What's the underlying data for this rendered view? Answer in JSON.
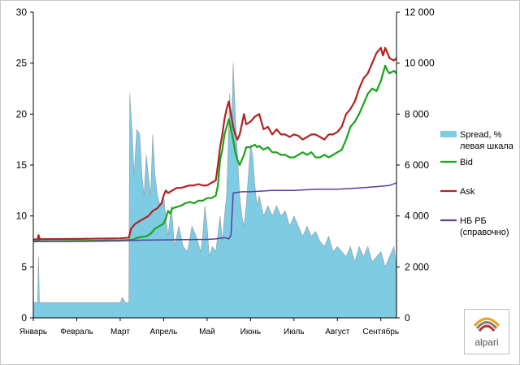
{
  "chart_data": {
    "type": "line",
    "title": "",
    "x_categories": [
      "Январь",
      "Февраль",
      "Март",
      "Апрель",
      "Май",
      "Июнь",
      "Июль",
      "Август",
      "Сентябрь"
    ],
    "y_left": {
      "min": 0,
      "max": 30,
      "ticks": [
        "0",
        "5",
        "10",
        "15",
        "20",
        "25",
        "30"
      ]
    },
    "y_right": {
      "min": 0,
      "max": 12000,
      "ticks": [
        "0",
        "2 000",
        "4 000",
        "6 000",
        "8 000",
        "10 000",
        "12 000"
      ]
    },
    "grid": false,
    "legend_position": "right",
    "series": [
      {
        "name": "Spread, %\nлевая шкала",
        "type": "area",
        "axis": "left",
        "color": "#7ecbe4",
        "points": [
          [
            0,
            1.5
          ],
          [
            0.1,
            1.5
          ],
          [
            0.12,
            6
          ],
          [
            0.14,
            1.5
          ],
          [
            1.0,
            1.5
          ],
          [
            2.0,
            1.5
          ],
          [
            2.05,
            2
          ],
          [
            2.12,
            1.5
          ],
          [
            2.2,
            1.5
          ],
          [
            2.22,
            22
          ],
          [
            2.28,
            18
          ],
          [
            2.32,
            14
          ],
          [
            2.38,
            18.5
          ],
          [
            2.45,
            18
          ],
          [
            2.5,
            14
          ],
          [
            2.55,
            12
          ],
          [
            2.6,
            16
          ],
          [
            2.65,
            14
          ],
          [
            2.7,
            12
          ],
          [
            2.75,
            18
          ],
          [
            2.8,
            14
          ],
          [
            2.86,
            12
          ],
          [
            2.92,
            11
          ],
          [
            3.0,
            12
          ],
          [
            3.05,
            10
          ],
          [
            3.1,
            8
          ],
          [
            3.18,
            11
          ],
          [
            3.25,
            7
          ],
          [
            3.35,
            9
          ],
          [
            3.45,
            7
          ],
          [
            3.55,
            6.5
          ],
          [
            3.65,
            9
          ],
          [
            3.75,
            8
          ],
          [
            3.85,
            6.5
          ],
          [
            3.9,
            8
          ],
          [
            3.95,
            11
          ],
          [
            4.0,
            9
          ],
          [
            4.05,
            6
          ],
          [
            4.12,
            7
          ],
          [
            4.2,
            6.5
          ],
          [
            4.3,
            10
          ],
          [
            4.35,
            7.5
          ],
          [
            4.4,
            10
          ],
          [
            4.45,
            12
          ],
          [
            4.48,
            16
          ],
          [
            4.52,
            22
          ],
          [
            4.56,
            18
          ],
          [
            4.6,
            25
          ],
          [
            4.65,
            20
          ],
          [
            4.7,
            16
          ],
          [
            4.75,
            12
          ],
          [
            4.8,
            10
          ],
          [
            4.85,
            9
          ],
          [
            4.9,
            11
          ],
          [
            4.95,
            14
          ],
          [
            5.0,
            17
          ],
          [
            5.05,
            16
          ],
          [
            5.1,
            13
          ],
          [
            5.15,
            11
          ],
          [
            5.2,
            12
          ],
          [
            5.3,
            10
          ],
          [
            5.4,
            11
          ],
          [
            5.5,
            10
          ],
          [
            5.6,
            11
          ],
          [
            5.7,
            10
          ],
          [
            5.8,
            10.5
          ],
          [
            5.9,
            9
          ],
          [
            6.0,
            10
          ],
          [
            6.1,
            9
          ],
          [
            6.2,
            8
          ],
          [
            6.3,
            9
          ],
          [
            6.4,
            8
          ],
          [
            6.5,
            8.5
          ],
          [
            6.6,
            7.5
          ],
          [
            6.7,
            7
          ],
          [
            6.8,
            8
          ],
          [
            6.9,
            6.5
          ],
          [
            7.0,
            7
          ],
          [
            7.1,
            6.5
          ],
          [
            7.2,
            6
          ],
          [
            7.3,
            7
          ],
          [
            7.4,
            5.5
          ],
          [
            7.5,
            7
          ],
          [
            7.6,
            6
          ],
          [
            7.7,
            7
          ],
          [
            7.8,
            5.5
          ],
          [
            7.9,
            6
          ],
          [
            8.0,
            6.5
          ],
          [
            8.1,
            5
          ],
          [
            8.2,
            6
          ],
          [
            8.3,
            7
          ],
          [
            8.36,
            5
          ]
        ]
      },
      {
        "name": "Bid",
        "type": "line",
        "axis": "right",
        "color": "#1aa31a",
        "points": [
          [
            0,
            3000
          ],
          [
            0.05,
            3000
          ],
          [
            0.1,
            3010
          ],
          [
            0.12,
            3080
          ],
          [
            0.15,
            3010
          ],
          [
            1.0,
            3020
          ],
          [
            2.0,
            3040
          ],
          [
            2.2,
            3060
          ],
          [
            2.3,
            3070
          ],
          [
            2.4,
            3150
          ],
          [
            2.5,
            3180
          ],
          [
            2.6,
            3200
          ],
          [
            2.7,
            3300
          ],
          [
            2.8,
            3500
          ],
          [
            2.9,
            3600
          ],
          [
            3.0,
            3700
          ],
          [
            3.05,
            3900
          ],
          [
            3.1,
            4200
          ],
          [
            3.15,
            4100
          ],
          [
            3.2,
            4300
          ],
          [
            3.3,
            4350
          ],
          [
            3.4,
            4400
          ],
          [
            3.5,
            4500
          ],
          [
            3.6,
            4550
          ],
          [
            3.7,
            4500
          ],
          [
            3.8,
            4600
          ],
          [
            3.9,
            4600
          ],
          [
            4.0,
            4700
          ],
          [
            4.1,
            4700
          ],
          [
            4.2,
            4800
          ],
          [
            4.25,
            5200
          ],
          [
            4.3,
            6200
          ],
          [
            4.35,
            6600
          ],
          [
            4.4,
            7200
          ],
          [
            4.45,
            7500
          ],
          [
            4.5,
            7800
          ],
          [
            4.55,
            7400
          ],
          [
            4.6,
            7000
          ],
          [
            4.65,
            6500
          ],
          [
            4.7,
            6200
          ],
          [
            4.75,
            6000
          ],
          [
            4.8,
            6200
          ],
          [
            4.85,
            6400
          ],
          [
            4.9,
            6700
          ],
          [
            5.0,
            6700
          ],
          [
            5.1,
            6800
          ],
          [
            5.15,
            6700
          ],
          [
            5.2,
            6750
          ],
          [
            5.3,
            6600
          ],
          [
            5.4,
            6700
          ],
          [
            5.5,
            6500
          ],
          [
            5.6,
            6500
          ],
          [
            5.7,
            6400
          ],
          [
            5.8,
            6400
          ],
          [
            5.9,
            6300
          ],
          [
            6.0,
            6300
          ],
          [
            6.1,
            6400
          ],
          [
            6.2,
            6500
          ],
          [
            6.3,
            6400
          ],
          [
            6.4,
            6500
          ],
          [
            6.5,
            6300
          ],
          [
            6.6,
            6300
          ],
          [
            6.7,
            6400
          ],
          [
            6.8,
            6300
          ],
          [
            6.9,
            6400
          ],
          [
            7.0,
            6500
          ],
          [
            7.1,
            6600
          ],
          [
            7.2,
            7000
          ],
          [
            7.3,
            7500
          ],
          [
            7.4,
            7700
          ],
          [
            7.5,
            8000
          ],
          [
            7.6,
            8400
          ],
          [
            7.7,
            8800
          ],
          [
            7.8,
            9000
          ],
          [
            7.9,
            8900
          ],
          [
            8.0,
            9300
          ],
          [
            8.05,
            9600
          ],
          [
            8.1,
            9900
          ],
          [
            8.15,
            9700
          ],
          [
            8.2,
            9600
          ],
          [
            8.3,
            9700
          ],
          [
            8.36,
            9600
          ]
        ]
      },
      {
        "name": "Ask",
        "type": "line",
        "axis": "right",
        "color": "#b22222",
        "points": [
          [
            0,
            3080
          ],
          [
            0.1,
            3080
          ],
          [
            0.12,
            3250
          ],
          [
            0.15,
            3090
          ],
          [
            1.0,
            3100
          ],
          [
            2.0,
            3120
          ],
          [
            2.2,
            3150
          ],
          [
            2.25,
            3500
          ],
          [
            2.3,
            3600
          ],
          [
            2.35,
            3700
          ],
          [
            2.45,
            3800
          ],
          [
            2.55,
            3900
          ],
          [
            2.65,
            4000
          ],
          [
            2.75,
            4200
          ],
          [
            2.85,
            4300
          ],
          [
            2.95,
            4500
          ],
          [
            3.0,
            4800
          ],
          [
            3.05,
            5000
          ],
          [
            3.1,
            4900
          ],
          [
            3.2,
            5000
          ],
          [
            3.3,
            5100
          ],
          [
            3.4,
            5100
          ],
          [
            3.5,
            5150
          ],
          [
            3.6,
            5200
          ],
          [
            3.7,
            5200
          ],
          [
            3.8,
            5250
          ],
          [
            3.9,
            5200
          ],
          [
            4.0,
            5200
          ],
          [
            4.1,
            5300
          ],
          [
            4.2,
            5400
          ],
          [
            4.25,
            6000
          ],
          [
            4.3,
            6700
          ],
          [
            4.35,
            7200
          ],
          [
            4.4,
            7800
          ],
          [
            4.45,
            8200
          ],
          [
            4.5,
            8500
          ],
          [
            4.55,
            8000
          ],
          [
            4.6,
            7500
          ],
          [
            4.65,
            7200
          ],
          [
            4.7,
            7000
          ],
          [
            4.75,
            7200
          ],
          [
            4.8,
            7600
          ],
          [
            4.85,
            8000
          ],
          [
            4.9,
            7600
          ],
          [
            5.0,
            7700
          ],
          [
            5.1,
            7900
          ],
          [
            5.2,
            8000
          ],
          [
            5.3,
            7400
          ],
          [
            5.4,
            7500
          ],
          [
            5.5,
            7200
          ],
          [
            5.6,
            7400
          ],
          [
            5.7,
            7200
          ],
          [
            5.8,
            7200
          ],
          [
            5.9,
            7100
          ],
          [
            6.0,
            7200
          ],
          [
            6.1,
            7150
          ],
          [
            6.2,
            7000
          ],
          [
            6.3,
            7100
          ],
          [
            6.4,
            7200
          ],
          [
            6.5,
            7200
          ],
          [
            6.6,
            7100
          ],
          [
            6.7,
            7000
          ],
          [
            6.8,
            7200
          ],
          [
            6.9,
            7200
          ],
          [
            7.0,
            7300
          ],
          [
            7.1,
            7500
          ],
          [
            7.2,
            8000
          ],
          [
            7.3,
            8200
          ],
          [
            7.4,
            8500
          ],
          [
            7.5,
            9000
          ],
          [
            7.6,
            9400
          ],
          [
            7.7,
            9600
          ],
          [
            7.8,
            10000
          ],
          [
            7.9,
            10400
          ],
          [
            8.0,
            10600
          ],
          [
            8.05,
            10300
          ],
          [
            8.1,
            10600
          ],
          [
            8.15,
            10400
          ],
          [
            8.2,
            10200
          ],
          [
            8.3,
            10100
          ],
          [
            8.36,
            10200
          ]
        ]
      },
      {
        "name": "НБ РБ\n(справочно)",
        "type": "line",
        "axis": "right",
        "color": "#5b3c9e",
        "points": [
          [
            0,
            3000
          ],
          [
            1.0,
            3000
          ],
          [
            2.0,
            3020
          ],
          [
            2.5,
            3050
          ],
          [
            3.0,
            3060
          ],
          [
            3.5,
            3070
          ],
          [
            4.0,
            3080
          ],
          [
            4.2,
            3100
          ],
          [
            4.4,
            3150
          ],
          [
            4.5,
            3100
          ],
          [
            4.55,
            3250
          ],
          [
            4.6,
            4900
          ],
          [
            4.8,
            4950
          ],
          [
            5.0,
            4950
          ],
          [
            5.5,
            5000
          ],
          [
            6.0,
            5000
          ],
          [
            6.5,
            5050
          ],
          [
            7.0,
            5050
          ],
          [
            7.5,
            5100
          ],
          [
            7.9,
            5150
          ],
          [
            8.2,
            5200
          ],
          [
            8.36,
            5300
          ]
        ]
      }
    ]
  },
  "logo": {
    "name": "alpari",
    "text": "alpari",
    "colors": [
      "#e8a21c",
      "#7f7f7f",
      "#c62828"
    ]
  }
}
